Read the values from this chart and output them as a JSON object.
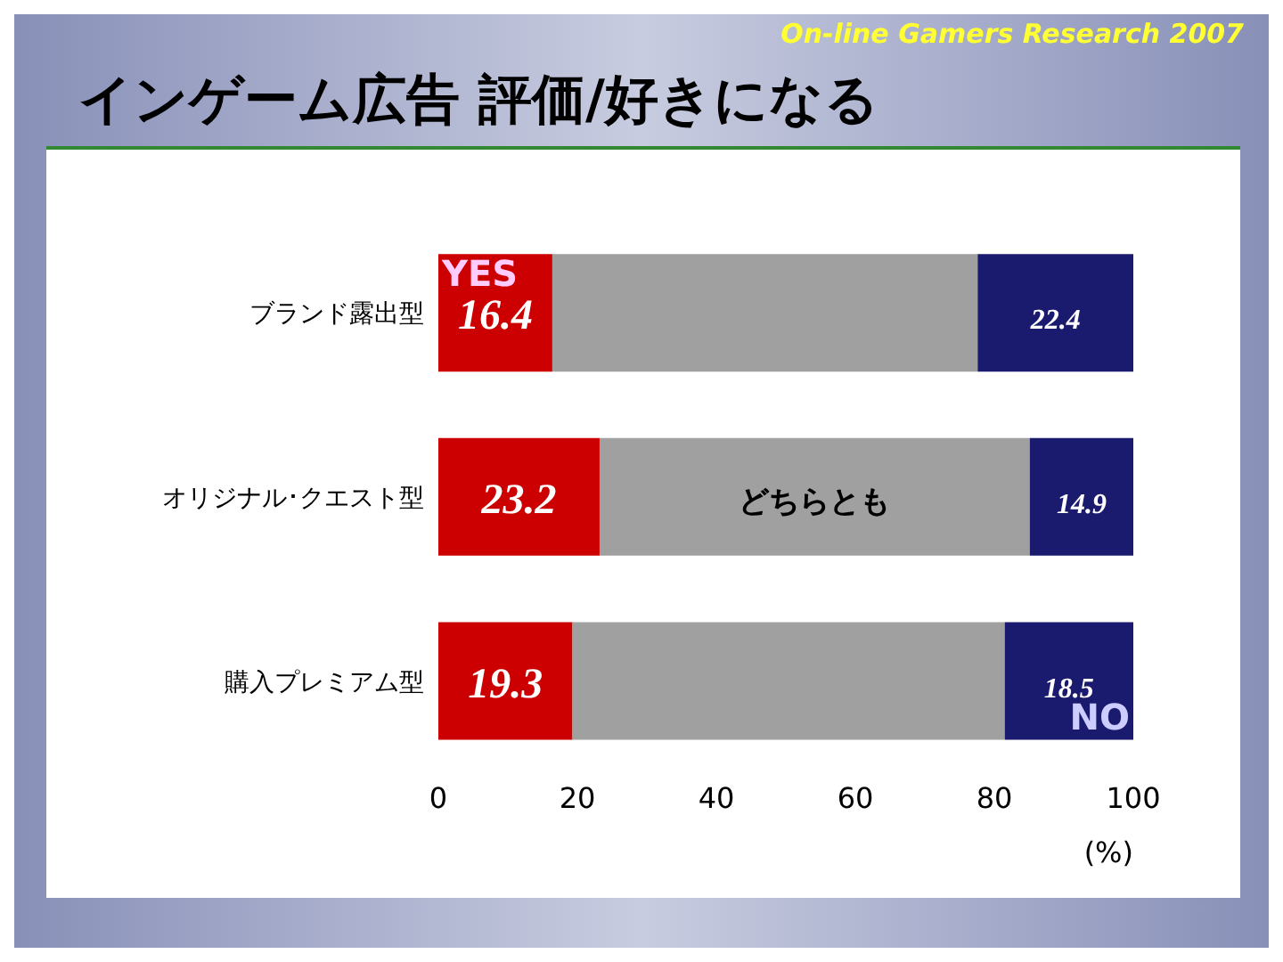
{
  "chart_data": {
    "type": "bar",
    "orientation": "horizontal",
    "stacked": true,
    "title": "インゲーム広告 評価/好きになる",
    "subtitle": "On-line Gamers Research 2007",
    "xlabel": "(%)",
    "categories": [
      "ブランド露出型",
      "オリジナル･クエスト型",
      "購入プレミアム型"
    ],
    "series": [
      {
        "name": "YES",
        "color": "#cc0000",
        "values": [
          16.4,
          23.2,
          19.3
        ],
        "value_labels": [
          "16.4",
          "23.2",
          "19.3"
        ]
      },
      {
        "name": "どちらとも",
        "color": "#a0a0a0",
        "values": [
          61.2,
          61.9,
          62.2
        ],
        "value_labels": [
          null,
          null,
          null
        ]
      },
      {
        "name": "NO",
        "color": "#1a1a6e",
        "values": [
          22.4,
          14.9,
          18.5
        ],
        "value_labels": [
          "22.4",
          "14.9",
          "18.5"
        ]
      }
    ],
    "xlim": [
      0,
      100
    ],
    "xticks": [
      0,
      20,
      40,
      60,
      80,
      100
    ],
    "grid": false,
    "legend": false
  }
}
